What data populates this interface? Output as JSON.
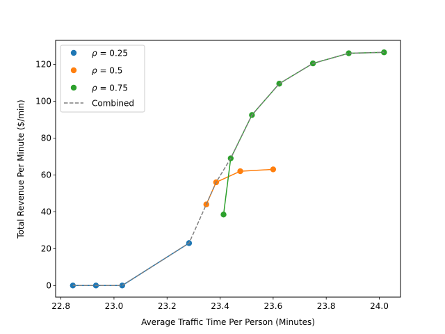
{
  "chart_data": {
    "type": "scatter",
    "xlabel": "Average Traffic Time Per Person (Minutes)",
    "ylabel": "Total Revenue Per Minute ($/min)",
    "xlim": [
      22.78,
      24.08
    ],
    "ylim": [
      -6.3,
      133
    ],
    "xticks": [
      22.8,
      23.0,
      23.2,
      23.4,
      23.6,
      23.8,
      24.0
    ],
    "xtick_labels": [
      "22.8",
      "23.0",
      "23.2",
      "23.4",
      "23.6",
      "23.8",
      "24.0"
    ],
    "yticks": [
      0,
      20,
      40,
      60,
      80,
      100,
      120
    ],
    "ytick_labels": [
      "0",
      "20",
      "40",
      "60",
      "80",
      "100",
      "120"
    ],
    "grid": false,
    "legend_position": "upper-left",
    "series": [
      {
        "name": "ρ = 0.25",
        "label_prefix": "ρ",
        "label_value": "0.25",
        "color": "#1f77b4",
        "x": [
          22.845,
          22.932,
          23.031,
          23.283
        ],
        "y": [
          0,
          0,
          0,
          23
        ]
      },
      {
        "name": "ρ = 0.5",
        "label_prefix": "ρ",
        "label_value": "0.5",
        "color": "#ff7f0e",
        "x": [
          23.348,
          23.385,
          23.476,
          23.6
        ],
        "y": [
          44,
          56,
          62,
          63
        ]
      },
      {
        "name": "ρ = 0.75",
        "label_prefix": "ρ",
        "label_value": "0.75",
        "color": "#2ca02c",
        "x": [
          23.413,
          23.44,
          23.52,
          23.623,
          23.75,
          23.885,
          24.018
        ],
        "y": [
          38.5,
          69,
          92.5,
          109.5,
          120.5,
          126,
          126.5
        ]
      }
    ],
    "combined": {
      "name": "Combined",
      "color": "#7f7f7f",
      "x": [
        22.845,
        22.932,
        23.031,
        23.283,
        23.348,
        23.385,
        23.44,
        23.52,
        23.623,
        23.75,
        23.885,
        24.018
      ],
      "y": [
        0,
        0,
        0,
        23,
        44,
        56,
        69,
        92.5,
        109.5,
        120.5,
        126,
        126.5
      ]
    }
  }
}
